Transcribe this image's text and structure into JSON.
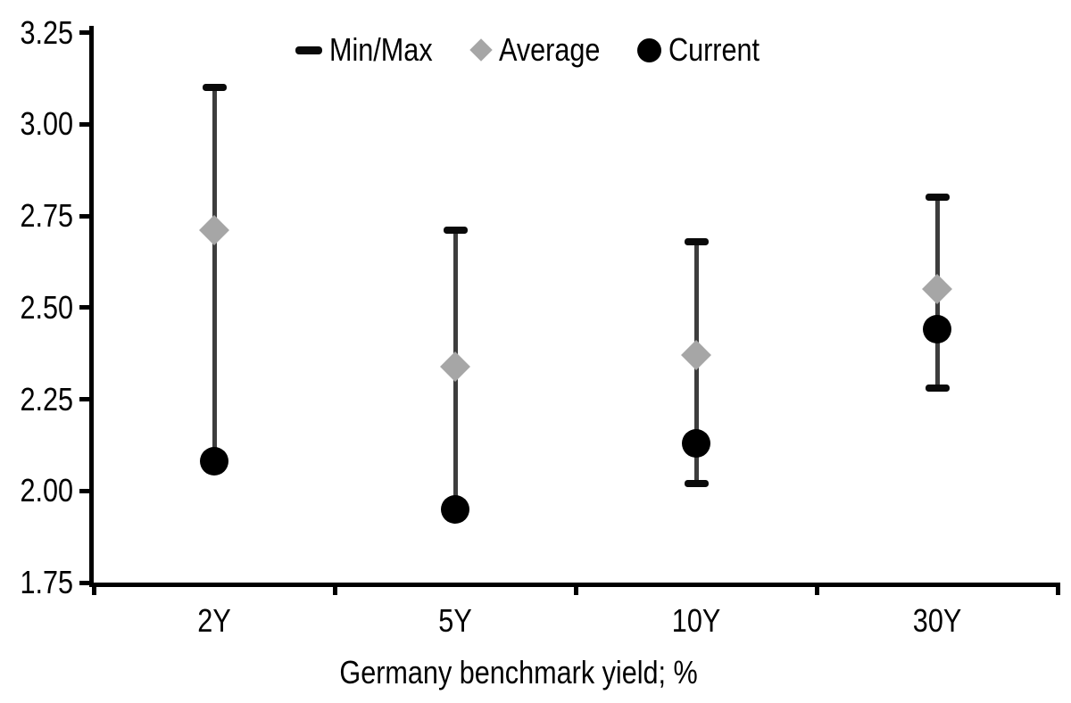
{
  "chart": {
    "title": "",
    "xlabel": "Germany benchmark yield; %"
  },
  "chart_data": {
    "type": "scatter",
    "subtype": "min-max-range-with-markers",
    "categories": [
      "2Y",
      "5Y",
      "10Y",
      "30Y"
    ],
    "series": [
      {
        "name": "Min/Max",
        "marker": "dash-cap",
        "min": [
          2.08,
          1.95,
          2.02,
          2.28
        ],
        "max": [
          3.1,
          2.71,
          2.68,
          2.8
        ]
      },
      {
        "name": "Average",
        "marker": "diamond",
        "values": [
          2.71,
          2.34,
          2.37,
          2.55
        ]
      },
      {
        "name": "Current",
        "marker": "circle",
        "values": [
          2.08,
          1.95,
          2.13,
          2.44
        ]
      }
    ],
    "xlabel": "Germany benchmark yield; %",
    "ylabel": "",
    "ylim": [
      1.75,
      3.25
    ],
    "yticks": [
      1.75,
      2.0,
      2.25,
      2.5,
      2.75,
      3.0,
      3.25
    ],
    "ytick_labels": [
      "1.75",
      "2.00",
      "2.25",
      "2.50",
      "2.75",
      "3.00",
      "3.25"
    ],
    "grid": false,
    "legend_position": "top"
  },
  "colors": {
    "current": "#000000",
    "average": "#a6a6a6",
    "minmax_cap": "#0a0a0a",
    "whisker": "#3d3d3d",
    "axis": "#000000",
    "text": "#000000"
  }
}
